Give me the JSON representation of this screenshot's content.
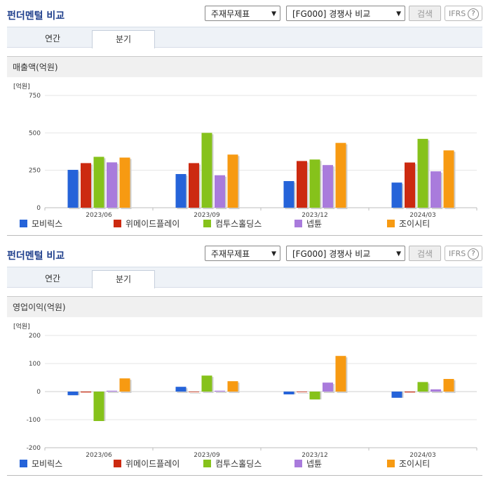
{
  "header": {
    "title": "펀더멘털 비교",
    "select1": "주재무제표",
    "select2": "[FG000] 경쟁사 비교",
    "search_label": "검색",
    "ifrs_label": "IFRS",
    "ifrs_help": "?"
  },
  "tabs": [
    "연간",
    "분기"
  ],
  "active_tab": 1,
  "colors": {
    "series": [
      "#2563d9",
      "#cc2a10",
      "#86c21b",
      "#a97bdc",
      "#f79a12"
    ]
  },
  "chart_data": [
    {
      "type": "bar",
      "title": "매출액(억원)",
      "unit_label": "[억원]",
      "categories": [
        "2023/06",
        "2023/09",
        "2023/12",
        "2024/03"
      ],
      "ylim": [
        0,
        750
      ],
      "yticks": [
        0,
        250,
        500,
        750
      ],
      "ytick_labels": [
        "0",
        "250",
        "500",
        "750"
      ],
      "grid": true,
      "legend_position": "bottom",
      "series": [
        {
          "name": "모비릭스",
          "values": [
            253,
            225,
            178,
            168
          ]
        },
        {
          "name": "위메이드플레이",
          "values": [
            298,
            298,
            312,
            302
          ]
        },
        {
          "name": "컴투스홀딩스",
          "values": [
            340,
            500,
            322,
            460
          ]
        },
        {
          "name": "넵튠",
          "values": [
            303,
            217,
            285,
            243
          ]
        },
        {
          "name": "조이시티",
          "values": [
            335,
            355,
            433,
            383
          ]
        }
      ]
    },
    {
      "type": "bar",
      "title": "영업이익(억원)",
      "unit_label": "[억원]",
      "categories": [
        "2023/06",
        "2023/09",
        "2023/12",
        "2024/03"
      ],
      "ylim": [
        -200,
        200
      ],
      "yticks": [
        -200,
        -100,
        0,
        100,
        200
      ],
      "ytick_labels": [
        "-200",
        "-100",
        "0",
        "100",
        "200"
      ],
      "grid": true,
      "legend_position": "bottom",
      "series": [
        {
          "name": "모비릭스",
          "values": [
            -13,
            17,
            -10,
            -22
          ]
        },
        {
          "name": "위메이드플레이",
          "values": [
            -3,
            0,
            0,
            -3
          ]
        },
        {
          "name": "컴투스홀딩스",
          "values": [
            -105,
            57,
            -28,
            34
          ]
        },
        {
          "name": "넵튠",
          "values": [
            3,
            3,
            32,
            8
          ]
        },
        {
          "name": "조이시티",
          "values": [
            47,
            37,
            127,
            45
          ]
        }
      ]
    }
  ]
}
